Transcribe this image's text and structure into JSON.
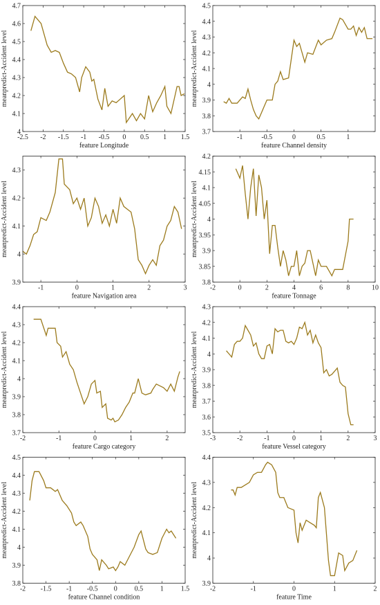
{
  "chart_data": [
    {
      "type": "line",
      "xlabel": "feature Longitude",
      "ylabel": "meanpredict-Accident level",
      "color": "#9b7a1c",
      "xlim": [
        -2.5,
        1.5
      ],
      "ylim": [
        4,
        4.7
      ],
      "xticks": [
        -2.5,
        -2,
        -1.5,
        -1,
        -0.5,
        0,
        0.5,
        1,
        1.5
      ],
      "yticks": [
        4,
        4.1,
        4.2,
        4.3,
        4.4,
        4.5,
        4.6,
        4.7
      ],
      "x": [
        -2.3,
        -2.2,
        -2.05,
        -1.9,
        -1.8,
        -1.7,
        -1.6,
        -1.5,
        -1.4,
        -1.3,
        -1.2,
        -1.1,
        -1.05,
        -0.95,
        -0.85,
        -0.8,
        -0.75,
        -0.65,
        -0.55,
        -0.48,
        -0.4,
        -0.3,
        -0.2,
        -0.1,
        0,
        0.05,
        0.2,
        0.3,
        0.4,
        0.5,
        0.6,
        0.7,
        0.8,
        0.9,
        1.0,
        1.05,
        1.15,
        1.3,
        1.35,
        1.4,
        1.48
      ],
      "values": [
        4.56,
        4.64,
        4.6,
        4.48,
        4.44,
        4.45,
        4.44,
        4.38,
        4.33,
        4.32,
        4.3,
        4.22,
        4.3,
        4.36,
        4.33,
        4.28,
        4.29,
        4.18,
        4.12,
        4.24,
        4.14,
        4.17,
        4.16,
        4.18,
        4.2,
        4.05,
        4.1,
        4.06,
        4.1,
        4.07,
        4.2,
        4.11,
        4.16,
        4.2,
        4.25,
        4.14,
        4.1,
        4.25,
        4.25,
        4.2,
        4.21
      ]
    },
    {
      "type": "line",
      "xlabel": "feature Channel density",
      "ylabel": "meanpredict-Accident level",
      "color": "#9b7a1c",
      "xlim": [
        -1.5,
        1.5
      ],
      "ylim": [
        3.7,
        4.5
      ],
      "xticks": [
        -1,
        -0.5,
        0,
        0.5,
        1
      ],
      "yticks": [
        3.7,
        3.8,
        3.9,
        4,
        4.1,
        4.2,
        4.3,
        4.4,
        4.5
      ],
      "x": [
        -1.3,
        -1.25,
        -1.2,
        -1.15,
        -1.05,
        -0.95,
        -0.9,
        -0.85,
        -0.8,
        -0.75,
        -0.7,
        -0.65,
        -0.6,
        -0.5,
        -0.4,
        -0.35,
        -0.3,
        -0.25,
        -0.2,
        -0.1,
        0,
        0.05,
        0.1,
        0.2,
        0.25,
        0.35,
        0.45,
        0.5,
        0.6,
        0.7,
        0.75,
        0.85,
        0.9,
        1.0,
        1.05,
        1.1,
        1.15,
        1.2,
        1.25,
        1.3,
        1.35,
        1.45
      ],
      "values": [
        3.89,
        3.88,
        3.91,
        3.88,
        3.88,
        3.92,
        3.91,
        3.97,
        3.9,
        3.84,
        3.8,
        3.78,
        3.82,
        3.9,
        3.9,
        4.0,
        4.02,
        4.08,
        4.03,
        4.04,
        4.28,
        4.24,
        4.26,
        4.14,
        4.2,
        4.19,
        4.28,
        4.25,
        4.28,
        4.29,
        4.33,
        4.42,
        4.41,
        4.35,
        4.35,
        4.37,
        4.31,
        4.36,
        4.33,
        4.36,
        4.29,
        4.29
      ]
    },
    {
      "type": "line",
      "xlabel": "feature Navigation area",
      "ylabel": "meanpredict-Accident level",
      "color": "#9b7a1c",
      "xlim": [
        -1.5,
        3
      ],
      "ylim": [
        3.9,
        4.35
      ],
      "xticks": [
        -1,
        0,
        1,
        2,
        3
      ],
      "yticks": [
        3.9,
        4,
        4.1,
        4.2,
        4.3
      ],
      "x": [
        -1.5,
        -1.4,
        -1.3,
        -1.2,
        -1.1,
        -1.0,
        -0.85,
        -0.75,
        -0.6,
        -0.5,
        -0.4,
        -0.35,
        -0.2,
        -0.1,
        0,
        0.1,
        0.2,
        0.3,
        0.4,
        0.5,
        0.6,
        0.7,
        0.8,
        0.9,
        1.0,
        1.1,
        1.2,
        1.3,
        1.4,
        1.5,
        1.6,
        1.7,
        1.8,
        1.9,
        2.0,
        2.1,
        2.2,
        2.3,
        2.4,
        2.5,
        2.6,
        2.7,
        2.8,
        2.9
      ],
      "values": [
        4.01,
        4.0,
        4.03,
        4.07,
        4.08,
        4.13,
        4.12,
        4.15,
        4.22,
        4.34,
        4.34,
        4.25,
        4.23,
        4.18,
        4.2,
        4.16,
        4.2,
        4.1,
        4.13,
        4.2,
        4.17,
        4.11,
        4.14,
        4.1,
        4.16,
        4.11,
        4.2,
        4.17,
        4.16,
        4.15,
        4.09,
        3.98,
        3.96,
        3.93,
        3.96,
        3.98,
        3.96,
        4.03,
        4.05,
        4.1,
        4.12,
        4.17,
        4.15,
        4.09
      ]
    },
    {
      "type": "line",
      "xlabel": "feature Tonnage",
      "ylabel": "meanpredict-Accident level",
      "color": "#9b7a1c",
      "xlim": [
        -2,
        10
      ],
      "ylim": [
        3.8,
        4.2
      ],
      "xticks": [
        -2,
        0,
        2,
        4,
        6,
        8,
        10
      ],
      "yticks": [
        3.8,
        3.85,
        3.9,
        3.95,
        4,
        4.05,
        4.1,
        4.15,
        4.2
      ],
      "x": [
        -0.3,
        0,
        0.2,
        0.4,
        0.6,
        0.8,
        1.0,
        1.2,
        1.4,
        1.6,
        1.8,
        2.0,
        2.2,
        2.4,
        2.6,
        2.8,
        3.0,
        3.2,
        3.4,
        3.6,
        3.8,
        4.0,
        4.2,
        4.4,
        4.6,
        4.8,
        5.0,
        5.2,
        5.4,
        5.6,
        5.8,
        6.0,
        6.4,
        6.8,
        7.0,
        7.6,
        8.0,
        8.1,
        8.4
      ],
      "values": [
        4.16,
        4.13,
        4.17,
        4.08,
        4.0,
        4.1,
        4.16,
        4.01,
        4.14,
        4.1,
        4.0,
        4.06,
        3.89,
        3.98,
        3.98,
        3.91,
        3.85,
        3.9,
        3.87,
        3.82,
        3.85,
        3.85,
        3.9,
        3.82,
        3.85,
        3.86,
        3.9,
        3.9,
        3.86,
        3.82,
        3.87,
        3.85,
        3.85,
        3.82,
        3.84,
        3.84,
        3.93,
        4.0,
        4.0
      ]
    },
    {
      "type": "line",
      "xlabel": "feature Cargo category",
      "ylabel": "meanpredict-Accident level",
      "color": "#9b7a1c",
      "xlim": [
        -2,
        2.5
      ],
      "ylim": [
        3.7,
        4.4
      ],
      "xticks": [
        -2,
        -1,
        0,
        1,
        2
      ],
      "yticks": [
        3.7,
        3.8,
        3.9,
        4,
        4.1,
        4.2,
        4.3,
        4.4
      ],
      "x": [
        -1.7,
        -1.5,
        -1.35,
        -1.3,
        -1.1,
        -1.05,
        -0.95,
        -0.9,
        -0.8,
        -0.7,
        -0.6,
        -0.5,
        -0.4,
        -0.3,
        -0.2,
        -0.1,
        0,
        0.05,
        0.15,
        0.2,
        0.3,
        0.35,
        0.45,
        0.5,
        0.55,
        0.65,
        0.75,
        0.85,
        0.95,
        1.05,
        1.1,
        1.2,
        1.3,
        1.4,
        1.55,
        1.6,
        1.7,
        1.8,
        1.9,
        2.0,
        2.1,
        2.2,
        2.3,
        2.35
      ],
      "values": [
        4.33,
        4.33,
        4.24,
        4.28,
        4.28,
        4.2,
        4.18,
        4.12,
        4.15,
        4.08,
        4.05,
        3.98,
        3.92,
        3.86,
        3.9,
        3.97,
        3.99,
        3.92,
        3.93,
        3.84,
        3.86,
        3.78,
        3.77,
        3.78,
        3.76,
        3.77,
        3.8,
        3.84,
        3.87,
        3.92,
        3.92,
        4.0,
        3.92,
        3.91,
        3.92,
        3.94,
        3.97,
        3.96,
        3.95,
        3.93,
        3.97,
        3.93,
        4.01,
        4.04
      ]
    },
    {
      "type": "line",
      "xlabel": "feature Vessel category",
      "ylabel": "meanpredict-Accident level",
      "color": "#9b7a1c",
      "xlim": [
        -3,
        3
      ],
      "ylim": [
        3.5,
        4.3
      ],
      "xticks": [
        -3,
        -2,
        -1,
        0,
        1,
        2,
        3
      ],
      "yticks": [
        3.5,
        3.6,
        3.7,
        3.8,
        3.9,
        4,
        4.1,
        4.2,
        4.3
      ],
      "x": [
        -2.5,
        -2.4,
        -2.3,
        -2.2,
        -2.1,
        -2.0,
        -1.9,
        -1.8,
        -1.7,
        -1.6,
        -1.5,
        -1.4,
        -1.3,
        -1.2,
        -1.1,
        -1.0,
        -0.9,
        -0.8,
        -0.7,
        -0.6,
        -0.5,
        -0.4,
        -0.3,
        -0.2,
        -0.1,
        0,
        0.1,
        0.2,
        0.3,
        0.4,
        0.5,
        0.6,
        0.7,
        0.8,
        0.9,
        1.0,
        1.1,
        1.2,
        1.3,
        1.4,
        1.5,
        1.6,
        1.7,
        1.8,
        1.9,
        2.0,
        2.1,
        2.2
      ],
      "values": [
        4.02,
        4.0,
        3.98,
        4.06,
        4.08,
        4.08,
        4.1,
        4.18,
        4.15,
        4.12,
        4.05,
        4.07,
        4.0,
        3.97,
        3.97,
        4.05,
        4.06,
        4.0,
        4.16,
        4.14,
        4.15,
        4.15,
        4.08,
        4.07,
        4.08,
        4.06,
        4.1,
        4.17,
        4.16,
        4.2,
        4.12,
        4.15,
        4.07,
        4.12,
        4.07,
        4.04,
        3.88,
        3.9,
        3.86,
        3.87,
        3.89,
        3.91,
        3.82,
        3.8,
        3.79,
        3.62,
        3.55,
        3.55
      ]
    },
    {
      "type": "line",
      "xlabel": "feature Channel condition",
      "ylabel": "meanpredict-Accident level",
      "color": "#9b7a1c",
      "xlim": [
        -2,
        1.5
      ],
      "ylim": [
        3.8,
        4.5
      ],
      "xticks": [
        -2,
        -1.5,
        -1,
        -0.5,
        0,
        0.5,
        1,
        1.5
      ],
      "yticks": [
        3.8,
        3.9,
        4,
        4.1,
        4.2,
        4.3,
        4.4,
        4.5
      ],
      "x": [
        -1.85,
        -1.8,
        -1.75,
        -1.65,
        -1.55,
        -1.5,
        -1.4,
        -1.3,
        -1.25,
        -1.15,
        -1.05,
        -0.95,
        -0.9,
        -0.85,
        -0.75,
        -0.7,
        -0.6,
        -0.55,
        -0.5,
        -0.4,
        -0.35,
        -0.3,
        -0.2,
        -0.15,
        -0.05,
        0,
        0.05,
        0.1,
        0.2,
        0.3,
        0.4,
        0.5,
        0.55,
        0.65,
        0.7,
        0.8,
        0.9,
        1.0,
        1.1,
        1.15,
        1.2,
        1.3
      ],
      "values": [
        4.26,
        4.37,
        4.42,
        4.42,
        4.37,
        4.33,
        4.33,
        4.31,
        4.32,
        4.26,
        4.23,
        4.19,
        4.14,
        4.12,
        4.14,
        4.12,
        4.06,
        3.99,
        3.96,
        3.93,
        3.87,
        3.93,
        3.9,
        3.88,
        3.89,
        3.87,
        3.89,
        3.92,
        3.9,
        3.95,
        4.0,
        4.07,
        4.09,
        3.99,
        3.97,
        3.96,
        3.97,
        4.05,
        4.1,
        4.08,
        4.09,
        4.05
      ]
    },
    {
      "type": "line",
      "xlabel": "feature Time",
      "ylabel": "meanpredict-Accident level",
      "color": "#9b7a1c",
      "xlim": [
        -2,
        2
      ],
      "ylim": [
        3.9,
        4.4
      ],
      "xticks": [
        -2,
        -1,
        0,
        1,
        2
      ],
      "yticks": [
        3.9,
        4,
        4.1,
        4.2,
        4.3,
        4.4
      ],
      "x": [
        -1.55,
        -1.5,
        -1.45,
        -1.4,
        -1.3,
        -1.2,
        -1.1,
        -1.0,
        -0.9,
        -0.8,
        -0.7,
        -0.65,
        -0.55,
        -0.45,
        -0.4,
        -0.35,
        -0.25,
        -0.15,
        0,
        0.05,
        0.1,
        0.15,
        0.2,
        0.3,
        0.4,
        0.5,
        0.55,
        0.6,
        0.65,
        0.75,
        0.85,
        0.9,
        1.0,
        1.1,
        1.2,
        1.25,
        1.35,
        1.45,
        1.55
      ],
      "values": [
        4.27,
        4.27,
        4.25,
        4.28,
        4.28,
        4.29,
        4.3,
        4.33,
        4.34,
        4.34,
        4.37,
        4.38,
        4.37,
        4.34,
        4.26,
        4.24,
        4.24,
        4.2,
        4.19,
        4.1,
        4.06,
        4.14,
        4.11,
        4.15,
        4.14,
        4.13,
        4.12,
        4.24,
        4.26,
        4.2,
        3.99,
        3.93,
        3.93,
        4.02,
        4.01,
        3.95,
        3.98,
        3.99,
        4.03
      ]
    }
  ]
}
